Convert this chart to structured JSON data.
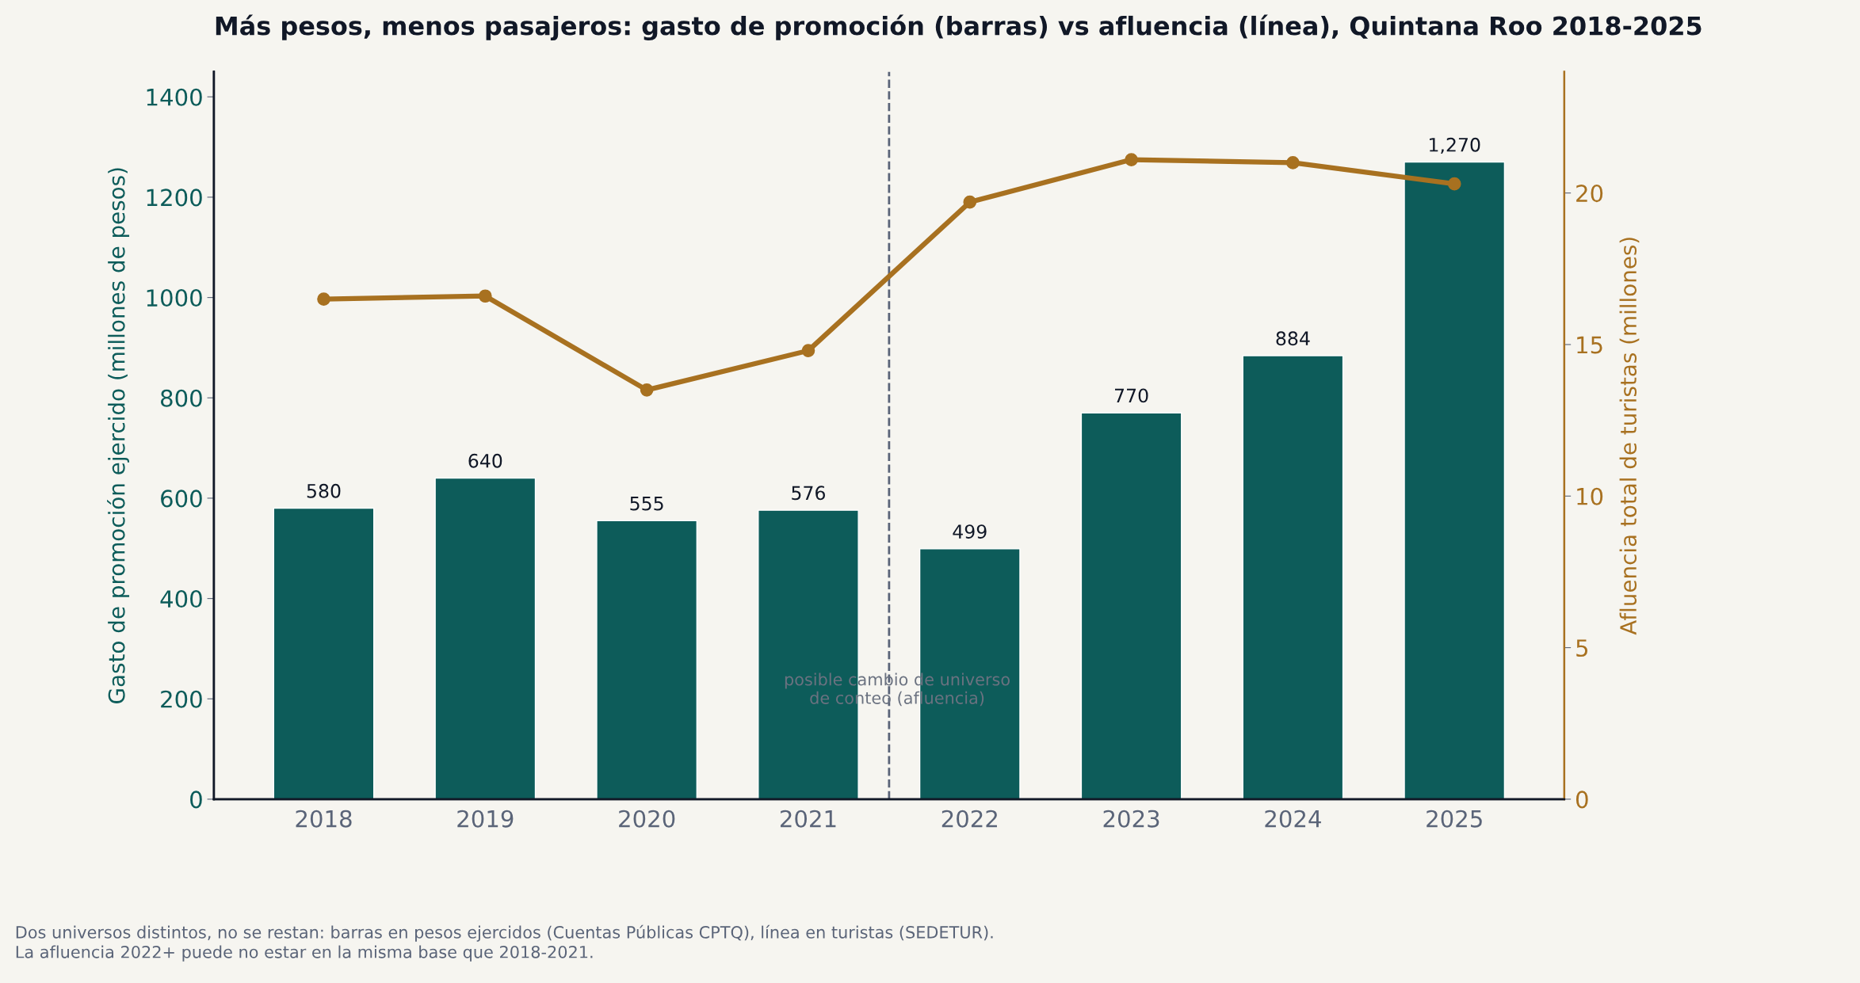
{
  "chart_data": {
    "type": "bar",
    "title": "Más pesos, menos pasajeros: gasto de promoción (barras) vs afluencia (línea), Quintana Roo 2018-2025",
    "ylabel": "Gasto de promoción ejercido (millones de pesos)",
    "y2label": "Afluencia total de turistas (millones)",
    "categories": [
      "2018",
      "2019",
      "2020",
      "2021",
      "2022",
      "2023",
      "2024",
      "2025"
    ],
    "series": [
      {
        "color": "#0d5c5a",
        "values": [
          580,
          640,
          555,
          576,
          499,
          770,
          884,
          1270
        ],
        "value_labels": [
          "580",
          "640",
          "555",
          "576",
          "499",
          "770",
          "884",
          "1,270"
        ]
      },
      {
        "type": "line",
        "axis": "y2",
        "color": "#a87120",
        "values": [
          16.5,
          16.6,
          13.5,
          14.8,
          19.7,
          21.1,
          21.0,
          20.3
        ]
      }
    ],
    "ylim": [
      0,
      1450
    ],
    "yticks": [
      0,
      200,
      400,
      600,
      800,
      1000,
      1200,
      1400
    ],
    "y2lim": [
      0,
      24
    ],
    "y2ticks": [
      0,
      5,
      10,
      15,
      20
    ],
    "marker": "circle",
    "line_style": "solid",
    "grid": false,
    "legend": false,
    "annotations": [
      "posible cambio de universo\nde conteo (afluencia)",
      "Dos universos distintos, no se restan: barras en pesos ejercidos (Cuentas Públicas CPTQ), línea en turistas (SEDETUR).\nLa afluencia 2022+ puede no estar en la misma base que 2018-2021."
    ]
  }
}
